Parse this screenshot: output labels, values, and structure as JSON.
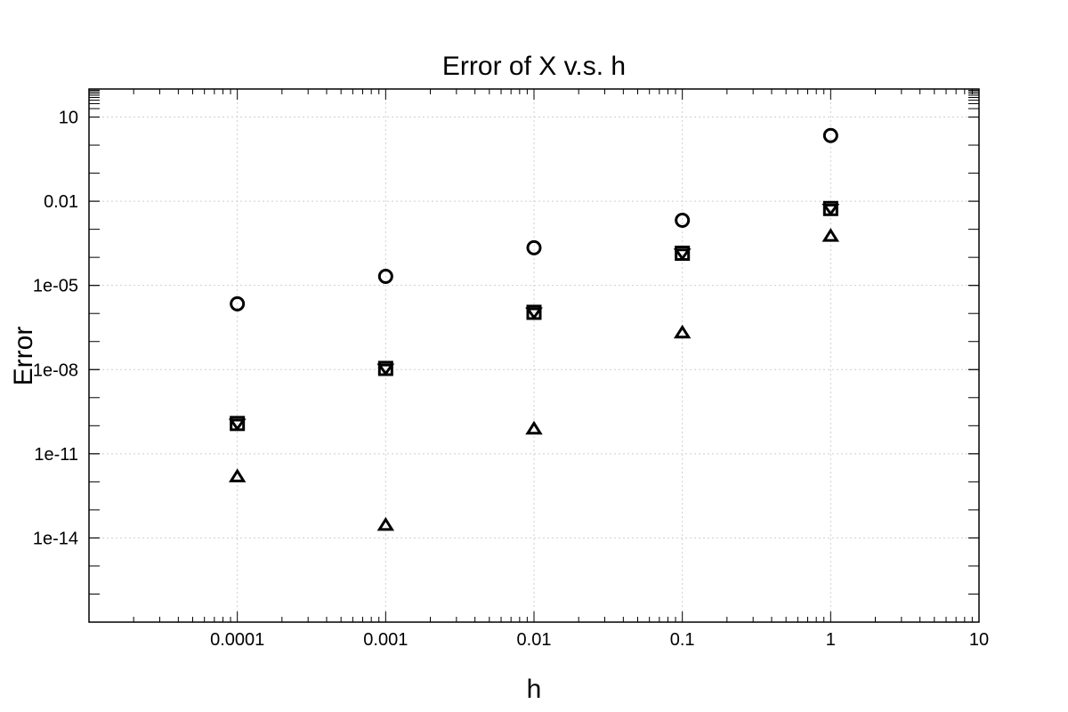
{
  "chart_data": {
    "type": "scatter",
    "title": "Error of X v.s. h",
    "xlabel": "h",
    "ylabel": "Error",
    "x_scale": "log",
    "y_scale": "log",
    "xlim": [
      1e-05,
      10
    ],
    "ylim": [
      1e-17,
      100
    ],
    "grid": true,
    "x_ticks": [
      {
        "value": 0.0001,
        "label": "0.0001"
      },
      {
        "value": 0.001,
        "label": "0.001"
      },
      {
        "value": 0.01,
        "label": "0.01"
      },
      {
        "value": 0.1,
        "label": "0.1"
      },
      {
        "value": 1,
        "label": "1"
      },
      {
        "value": 10,
        "label": "10"
      }
    ],
    "y_ticks": [
      {
        "value": 10,
        "label": "10"
      },
      {
        "value": 0.01,
        "label": "0.01"
      },
      {
        "value": 1e-05,
        "label": "1e-05"
      },
      {
        "value": 1e-08,
        "label": "1e-08"
      },
      {
        "value": 1e-11,
        "label": "1e-11"
      },
      {
        "value": 1e-14,
        "label": "1e-14"
      }
    ],
    "x": [
      0.0001,
      0.001,
      0.01,
      0.1,
      1
    ],
    "series": [
      {
        "marker": "circle",
        "values": [
          2.2e-06,
          2.1e-05,
          0.00022,
          0.0021,
          2.2
        ]
      },
      {
        "marker": "square",
        "values": [
          1.2e-10,
          1.1e-08,
          1.1e-06,
          0.00014,
          0.0055
        ]
      },
      {
        "marker": "triangle-down",
        "values": [
          1.2e-10,
          1.1e-08,
          1.1e-06,
          0.00014,
          0.0055
        ]
      },
      {
        "marker": "triangle-up",
        "values": [
          1.5e-12,
          2.8e-14,
          7.5e-11,
          2e-07,
          0.00056
        ]
      }
    ]
  }
}
